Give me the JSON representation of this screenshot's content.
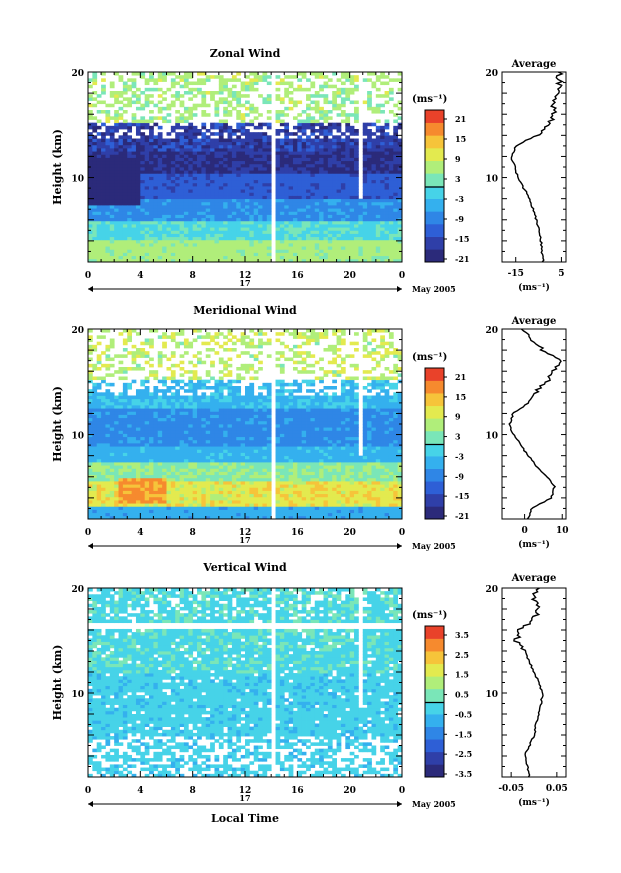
{
  "date_label": "May 2005",
  "panels": [
    {
      "title": "Zonal Wind",
      "ylabel": "Height (km)",
      "yticks": [
        "20",
        "10"
      ],
      "xticks": [
        "0",
        "4",
        "8",
        "12",
        "16",
        "20",
        "0"
      ],
      "day_label": "17",
      "unit": "(ms⁻¹)",
      "colorbar_ticks": [
        "21",
        "15",
        "9",
        "3",
        "-3",
        "-9",
        "-15",
        "-21"
      ],
      "avg_title": "Average",
      "avg_yticks": [
        "20",
        "10"
      ],
      "avg_xticks": [
        "-15",
        "5"
      ],
      "avg_unit": "(ms⁻¹)"
    },
    {
      "title": "Meridional Wind",
      "ylabel": "Height (km)",
      "yticks": [
        "20",
        "10"
      ],
      "xticks": [
        "0",
        "4",
        "8",
        "12",
        "16",
        "20",
        "0"
      ],
      "day_label": "17",
      "unit": "(ms⁻¹)",
      "colorbar_ticks": [
        "21",
        "15",
        "9",
        "3",
        "-3",
        "-9",
        "-15",
        "-21"
      ],
      "avg_title": "Average",
      "avg_yticks": [
        "20",
        "10"
      ],
      "avg_xticks": [
        "0",
        "10"
      ],
      "avg_unit": "(ms⁻¹)"
    },
    {
      "title": "Vertical Wind",
      "ylabel": "Height (km)",
      "yticks": [
        "20",
        "10"
      ],
      "xticks": [
        "0",
        "4",
        "8",
        "12",
        "16",
        "20",
        "0"
      ],
      "day_label": "17",
      "unit": "(ms⁻¹)",
      "colorbar_ticks": [
        "3.5",
        "2.5",
        "1.5",
        "0.5",
        "-0.5",
        "-1.5",
        "-2.5",
        "-3.5"
      ],
      "avg_title": "Average",
      "avg_yticks": [
        "20",
        "10"
      ],
      "avg_xticks": [
        "-0.05",
        "0.05"
      ],
      "avg_unit": "(ms⁻¹)"
    }
  ],
  "xlabel_bottom": "Local Time",
  "colors": {
    "scale": [
      "#2b2a7a",
      "#2f3fa8",
      "#2e5fd6",
      "#2f86e6",
      "#34b0ee",
      "#46d3e8",
      "#7ae6b8",
      "#b0ee7a",
      "#e3ea4f",
      "#f6c43a",
      "#f68a2e",
      "#e9422a"
    ]
  },
  "chart_data": [
    {
      "type": "heatmap",
      "title": "Zonal Wind",
      "ylabel": "Height (km)",
      "xlabel": "May 2005",
      "x_range": [
        0,
        24
      ],
      "ylim": [
        2,
        20
      ],
      "color_range": [
        -21,
        21
      ],
      "profile": [
        [
          2,
          -3
        ],
        [
          4,
          -4
        ],
        [
          6,
          -6
        ],
        [
          8,
          -9
        ],
        [
          10,
          -14
        ],
        [
          12,
          -17
        ],
        [
          13,
          -15
        ],
        [
          14,
          -6
        ],
        [
          15,
          0
        ],
        [
          16,
          2
        ],
        [
          17,
          1
        ],
        [
          18,
          3
        ],
        [
          19,
          4
        ],
        [
          20,
          4
        ]
      ]
    },
    {
      "type": "heatmap",
      "title": "Meridional Wind",
      "ylabel": "Height (km)",
      "xlabel": "May 2005",
      "x_range": [
        0,
        24
      ],
      "ylim": [
        2,
        20
      ],
      "color_range": [
        -21,
        21
      ],
      "profile": [
        [
          2,
          1
        ],
        [
          3,
          2
        ],
        [
          4,
          7
        ],
        [
          5,
          8
        ],
        [
          6,
          6
        ],
        [
          7,
          3
        ],
        [
          8,
          1
        ],
        [
          9,
          -1
        ],
        [
          10,
          -3
        ],
        [
          11,
          -4
        ],
        [
          12,
          -3
        ],
        [
          13,
          1
        ],
        [
          14,
          3
        ],
        [
          15,
          6
        ],
        [
          16,
          8
        ],
        [
          17,
          9
        ],
        [
          18,
          5
        ],
        [
          19,
          2
        ],
        [
          20,
          0
        ]
      ]
    },
    {
      "type": "heatmap",
      "title": "Vertical Wind",
      "ylabel": "Height (km)",
      "xlabel": "Local Time",
      "x_range": [
        0,
        24
      ],
      "ylim": [
        2,
        20
      ],
      "color_range": [
        -3.5,
        3.5
      ],
      "profile": [
        [
          2,
          -0.01
        ],
        [
          4,
          -0.02
        ],
        [
          6,
          0.0
        ],
        [
          8,
          0.01
        ],
        [
          10,
          0.02
        ],
        [
          12,
          0.0
        ],
        [
          14,
          -0.02
        ],
        [
          15,
          -0.04
        ],
        [
          16,
          -0.03
        ],
        [
          17,
          0.0
        ],
        [
          18,
          0.01
        ],
        [
          19,
          0.0
        ],
        [
          20,
          0.01
        ]
      ]
    }
  ]
}
